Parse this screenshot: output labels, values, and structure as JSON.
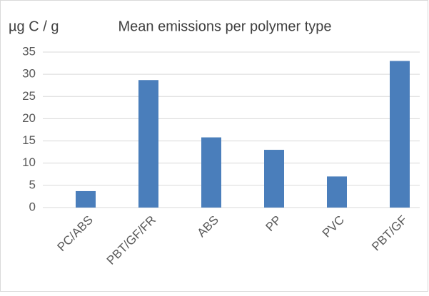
{
  "chart_data": {
    "type": "bar",
    "title": "Mean emissions per polymer type",
    "y_label": "µg C / g",
    "categories": [
      "PC/ABS",
      "PBT/GF/FR",
      "ABS",
      "PP",
      "PVC",
      "PBT/GF"
    ],
    "values": [
      3.7,
      28.7,
      15.8,
      13,
      7,
      33
    ],
    "color": "#4a7ebb",
    "ylim": [
      0,
      35
    ],
    "yticks": [
      0,
      5,
      10,
      15,
      20,
      25,
      30,
      35
    ],
    "grid": true
  }
}
